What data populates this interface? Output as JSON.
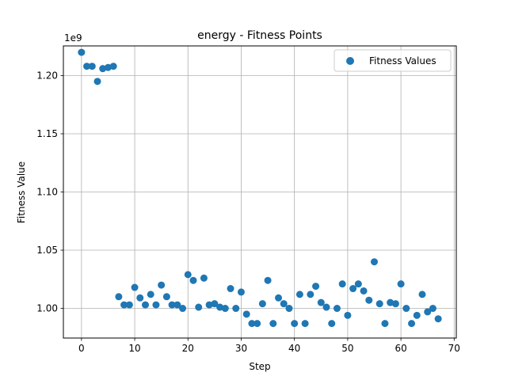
{
  "chart_data": {
    "type": "scatter",
    "title": "energy - Fitness Points",
    "xlabel": "Step",
    "ylabel": "Fitness Value",
    "y_offset_label": "1e9",
    "xlim": [
      -3.4,
      70.4
    ],
    "ylim": [
      0.9745,
      1.2255
    ],
    "x_ticks": [
      0,
      10,
      20,
      30,
      40,
      50,
      60,
      70
    ],
    "x_tick_labels": [
      "0",
      "10",
      "20",
      "30",
      "40",
      "50",
      "60",
      "70"
    ],
    "y_ticks": [
      1.0,
      1.05,
      1.1,
      1.15,
      1.2
    ],
    "y_tick_labels": [
      "1.00",
      "1.05",
      "1.10",
      "1.15",
      "1.20"
    ],
    "grid": true,
    "legend_position": "top-right",
    "series": [
      {
        "name": "Fitness Values",
        "color": "#1f77b4",
        "x": [
          0,
          1,
          2,
          3,
          4,
          5,
          6,
          7,
          8,
          9,
          10,
          11,
          12,
          13,
          14,
          15,
          16,
          17,
          18,
          19,
          20,
          21,
          22,
          23,
          24,
          25,
          26,
          27,
          28,
          29,
          30,
          31,
          32,
          33,
          34,
          35,
          36,
          37,
          38,
          39,
          40,
          41,
          42,
          43,
          44,
          45,
          46,
          47,
          48,
          49,
          50,
          51,
          52,
          53,
          54,
          55,
          56,
          57,
          58,
          59,
          60,
          61,
          62,
          63,
          64,
          65,
          66,
          67
        ],
        "y": [
          1.22,
          1.208,
          1.208,
          1.195,
          1.206,
          1.207,
          1.208,
          1.01,
          1.003,
          1.003,
          1.018,
          1.009,
          1.003,
          1.012,
          1.003,
          1.02,
          1.01,
          1.003,
          1.003,
          1.0,
          1.029,
          1.024,
          1.001,
          1.026,
          1.003,
          1.004,
          1.001,
          1.0,
          1.017,
          1.0,
          1.014,
          0.995,
          0.987,
          0.987,
          1.004,
          1.024,
          0.987,
          1.009,
          1.004,
          1.0,
          0.987,
          1.012,
          0.987,
          1.012,
          1.019,
          1.005,
          1.001,
          0.987,
          1.0,
          1.021,
          0.994,
          1.017,
          1.021,
          1.015,
          1.007,
          1.04,
          1.004,
          0.987,
          1.005,
          1.004,
          1.021,
          1.0,
          0.987,
          0.994,
          1.012,
          0.997,
          1.0,
          0.991
        ]
      }
    ]
  }
}
